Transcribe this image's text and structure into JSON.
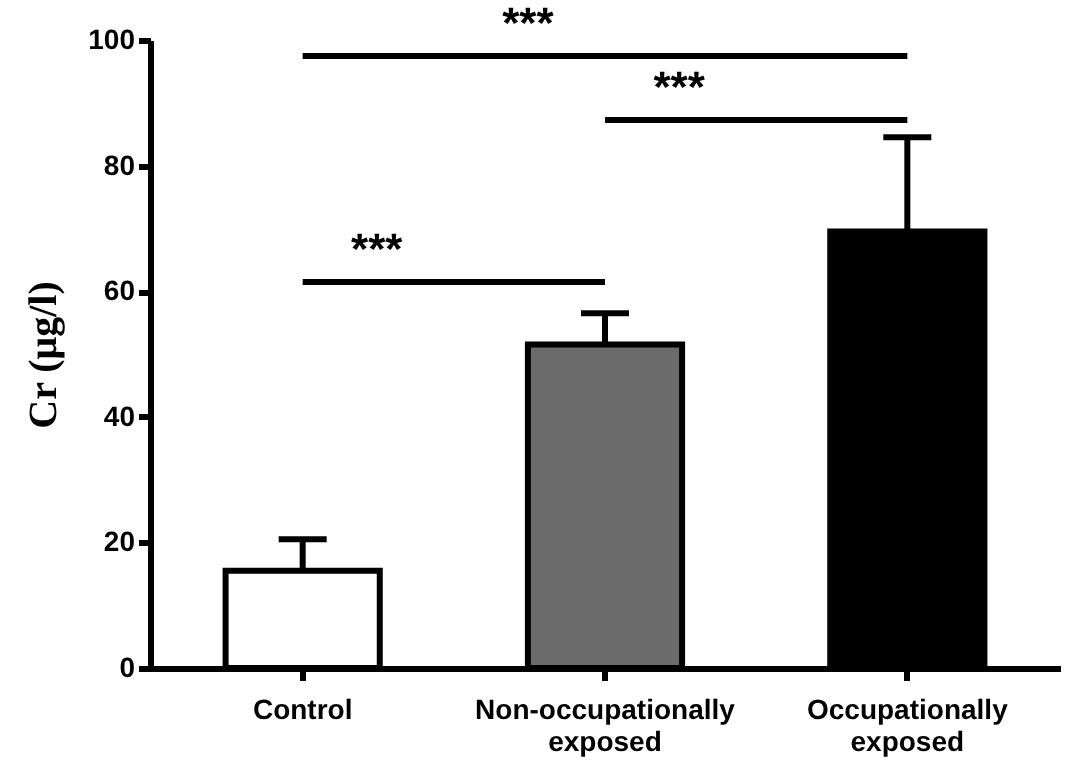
{
  "chart_data": {
    "type": "bar",
    "ylabel": "Cr (μg/l)",
    "categories": [
      "Control",
      "Non-occupationally exposed",
      "Occupationally exposed"
    ],
    "values": [
      15.5,
      51.5,
      69.5
    ],
    "errors": [
      5,
      5,
      15
    ],
    "colors": [
      "#ffffff",
      "#6b6b6b",
      "#000000"
    ],
    "ylim": [
      0,
      100
    ],
    "yticks": [
      0,
      20,
      40,
      60,
      80,
      100
    ],
    "grid": false,
    "annotations": [
      "***",
      "***",
      "***"
    ]
  }
}
